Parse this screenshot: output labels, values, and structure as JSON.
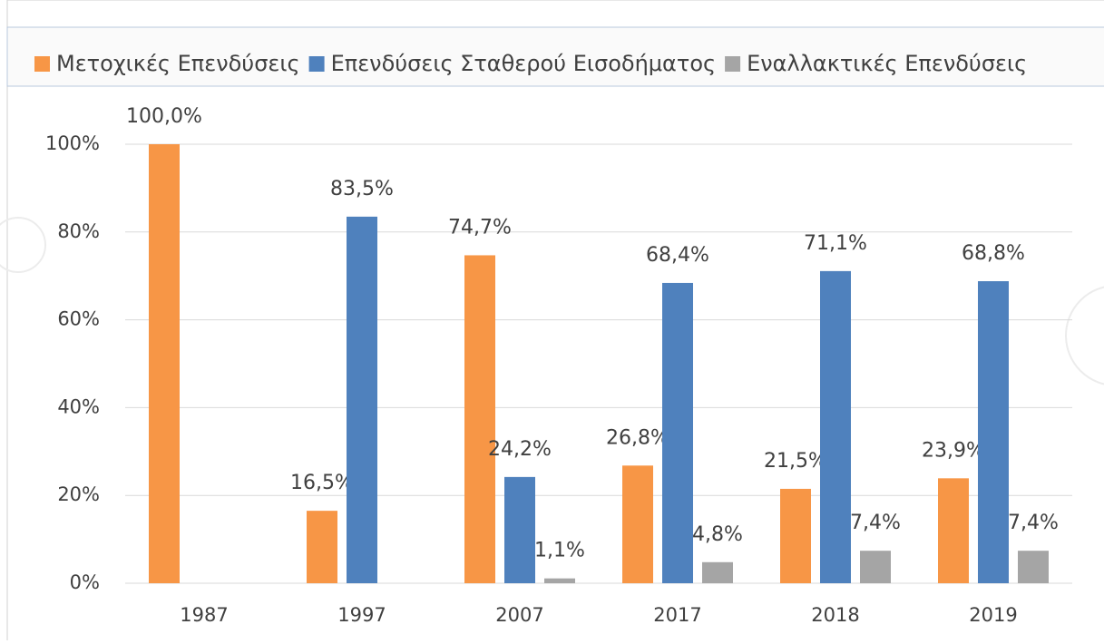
{
  "chart_data": {
    "type": "bar",
    "categories": [
      "1987",
      "1997",
      "2007",
      "2017",
      "2018",
      "2019"
    ],
    "series": [
      {
        "name": "Μετοχικές Επενδύσεις",
        "color": "#f79646",
        "values": [
          100,
          16.5,
          74.7,
          26.8,
          21.5,
          23.9
        ],
        "value_labels": [
          "100,0%",
          "16,5%",
          "74,7%",
          "26,8%",
          "21,5%",
          "23,9%"
        ]
      },
      {
        "name": "Επενδύσεις Σταθερού Εισοδήματος",
        "color": "#4f81bd",
        "values": [
          null,
          83.5,
          24.2,
          68.4,
          71.1,
          68.8
        ],
        "value_labels": [
          null,
          "83,5%",
          "24,2%",
          "68,4%",
          "71,1%",
          "68,8%"
        ]
      },
      {
        "name": "Εναλλακτικές Επενδύσεις",
        "color": "#a5a5a5",
        "values": [
          null,
          null,
          1.1,
          4.8,
          7.4,
          7.4
        ],
        "value_labels": [
          null,
          null,
          "1,1%",
          "4,8%",
          "7,4%",
          "7,4%"
        ]
      }
    ],
    "ylim": [
      0,
      100
    ],
    "yticks": [
      {
        "value": 0,
        "label": "0%"
      },
      {
        "value": 20,
        "label": "20%"
      },
      {
        "value": 40,
        "label": "40%"
      },
      {
        "value": 60,
        "label": "60%"
      },
      {
        "value": 80,
        "label": "80%"
      },
      {
        "value": 100,
        "label": "100%"
      }
    ],
    "grid": true,
    "legend": "top"
  }
}
